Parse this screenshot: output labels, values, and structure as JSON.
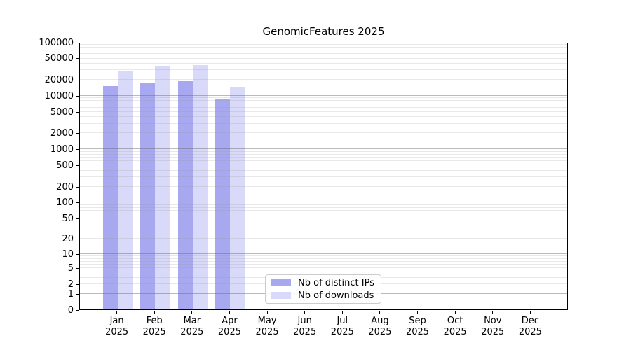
{
  "chart_data": {
    "type": "bar",
    "title": "GenomicFeatures 2025",
    "xlabel": "",
    "ylabel": "",
    "categories": [
      "Jan 2025",
      "Feb 2025",
      "Mar 2025",
      "Apr 2025",
      "May 2025",
      "Jun 2025",
      "Jul 2025",
      "Aug 2025",
      "Sep 2025",
      "Oct 2025",
      "Nov 2025",
      "Dec 2025"
    ],
    "series": [
      {
        "name": "Nb of distinct IPs",
        "color": "#a8a8f0",
        "values": [
          15000,
          16700,
          18400,
          8450,
          null,
          null,
          null,
          null,
          null,
          null,
          null,
          null
        ]
      },
      {
        "name": "Nb of downloads",
        "color": "#d9d9f9",
        "values": [
          28200,
          34800,
          37000,
          14200,
          null,
          null,
          null,
          null,
          null,
          null,
          null,
          null
        ]
      }
    ],
    "y_scale": "log1p",
    "ylim": [
      0,
      100000
    ],
    "y_ticks": [
      0,
      1,
      2,
      5,
      10,
      20,
      50,
      100,
      200,
      500,
      1000,
      2000,
      5000,
      10000,
      20000,
      50000,
      100000
    ],
    "grid": "horizontal",
    "grid_major_at": [
      1,
      10,
      100,
      1000,
      10000
    ],
    "legend_position": "lower center"
  }
}
